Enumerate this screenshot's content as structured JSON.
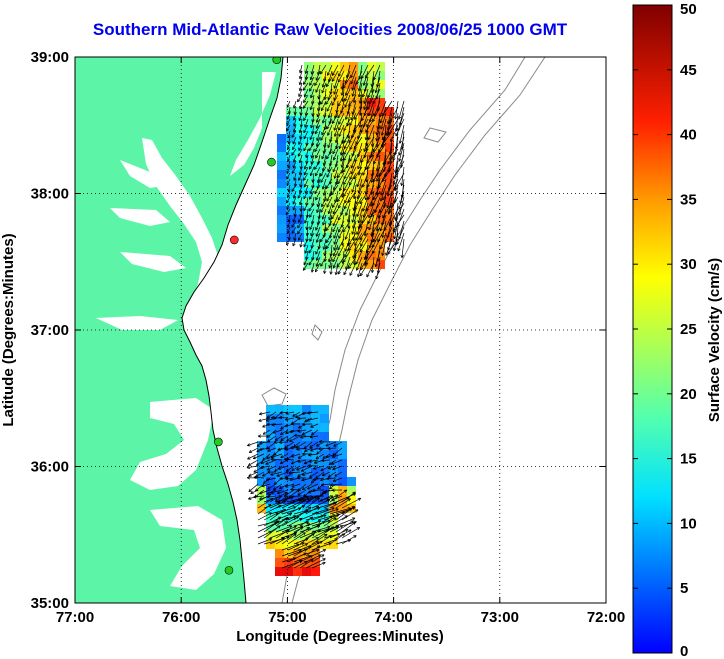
{
  "title": "Southern Mid-Atlantic Raw Velocities 2008/06/25 1000 GMT",
  "map": {
    "xlabel": "Longitude (Degrees:Minutes)",
    "ylabel": "Latitude (Degrees:Minutes)",
    "lon_range": [
      -77,
      -72
    ],
    "lat_range": [
      35,
      39
    ],
    "x_ticks": [
      {
        "value": -77,
        "label": "77:00"
      },
      {
        "value": -76,
        "label": "76:00"
      },
      {
        "value": -75,
        "label": "75:00"
      },
      {
        "value": -74,
        "label": "74:00"
      },
      {
        "value": -73,
        "label": "73:00"
      },
      {
        "value": -72,
        "label": "72:00"
      }
    ],
    "y_ticks": [
      {
        "value": 35,
        "label": "35:00"
      },
      {
        "value": 36,
        "label": "36:00"
      },
      {
        "value": 37,
        "label": "37:00"
      },
      {
        "value": 38,
        "label": "38:00"
      },
      {
        "value": 39,
        "label": "39:00"
      }
    ],
    "grid": true,
    "land_color": "#5cf5a8",
    "grid_line": "dotted",
    "stations": [
      {
        "lon": -75.1,
        "lat": 38.98,
        "color": "#22cc22"
      },
      {
        "lon": -75.15,
        "lat": 38.23,
        "color": "#22cc22"
      },
      {
        "lon": -75.5,
        "lat": 37.66,
        "color": "#ff2a2a"
      },
      {
        "lon": -75.65,
        "lat": 36.18,
        "color": "#22cc22"
      },
      {
        "lon": -75.55,
        "lat": 35.24,
        "color": "#22cc22"
      }
    ]
  },
  "colorbar": {
    "label": "Surface Velocity (cm/s)",
    "min": 0,
    "max": 50,
    "ticks": [
      {
        "value": 0,
        "label": "0"
      },
      {
        "value": 5,
        "label": "5"
      },
      {
        "value": 10,
        "label": "10"
      },
      {
        "value": 15,
        "label": "15"
      },
      {
        "value": 20,
        "label": "20"
      },
      {
        "value": 25,
        "label": "25"
      },
      {
        "value": 30,
        "label": "30"
      },
      {
        "value": 35,
        "label": "35"
      },
      {
        "value": 40,
        "label": "40"
      },
      {
        "value": 45,
        "label": "45"
      },
      {
        "value": 50,
        "label": "50"
      }
    ]
  },
  "chart_data": {
    "type": "heatmap",
    "colorscale": "jet",
    "regions": [
      {
        "name": "",
        "lon_range": [
          -75.1,
          -74.0
        ],
        "lat_range": [
          37.45,
          39.0
        ],
        "speed_range_cm_s": [
          5,
          50
        ],
        "dominant_direction": "south"
      },
      {
        "name": "",
        "lon_range": [
          -75.3,
          -74.45
        ],
        "lat_range": [
          35.25,
          36.4
        ],
        "speed_range_cm_s": [
          5,
          45
        ],
        "dominant_direction": "southwest / northeast"
      }
    ]
  }
}
